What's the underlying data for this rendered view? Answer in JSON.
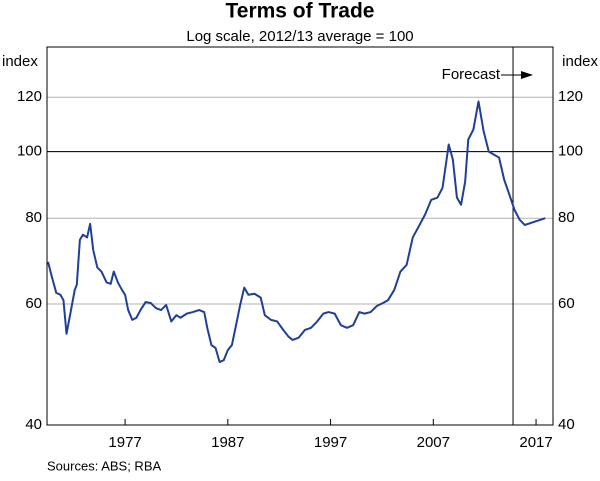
{
  "chart_data": {
    "type": "line",
    "title": "Terms of Trade",
    "subtitle": "Log scale, 2012/13 average = 100",
    "y_label": "index",
    "y2_label": "index",
    "source": "Sources:   ABS; RBA",
    "log_y": true,
    "grid": true,
    "hline": 100,
    "forecast_start": 2014.76,
    "annotation": "Forecast",
    "xlim": [
      1969.4,
      2018.65
    ],
    "xticks": [
      1977,
      1987,
      1997,
      2007,
      2017
    ],
    "ylim": [
      40,
      142
    ],
    "yticks": [
      40,
      60,
      80,
      100,
      120
    ],
    "y2lim": [
      40,
      142
    ],
    "y2ticks": [
      40,
      60,
      80,
      100,
      120
    ],
    "x": [
      1969.5,
      1969.9,
      1970.3,
      1970.7,
      1971.0,
      1971.3,
      1971.7,
      1972.1,
      1972.3,
      1972.6,
      1972.9,
      1973.3,
      1973.6,
      1973.9,
      1974.3,
      1974.7,
      1975.2,
      1975.6,
      1975.9,
      1976.3,
      1976.7,
      1977.0,
      1977.3,
      1977.7,
      1978.1,
      1978.5,
      1979.0,
      1979.5,
      1980.0,
      1980.5,
      1981.0,
      1981.5,
      1982.0,
      1982.4,
      1983.0,
      1983.6,
      1984.2,
      1984.7,
      1985.0,
      1985.4,
      1985.8,
      1986.2,
      1986.6,
      1987.0,
      1987.4,
      1987.8,
      1988.2,
      1988.6,
      1989.0,
      1989.6,
      1990.2,
      1990.6,
      1991.2,
      1991.8,
      1992.4,
      1992.9,
      1993.3,
      1993.9,
      1994.5,
      1995.1,
      1995.7,
      1996.3,
      1996.8,
      1997.4,
      1998.0,
      1998.6,
      1999.2,
      1999.8,
      2000.3,
      2000.9,
      2001.5,
      2002.1,
      2002.6,
      2003.2,
      2003.8,
      2004.4,
      2005.0,
      2005.6,
      2006.2,
      2006.8,
      2007.4,
      2007.9,
      2008.5,
      2008.9,
      2009.3,
      2009.7,
      2010.1,
      2010.4,
      2010.9,
      2011.4,
      2011.9,
      2012.4,
      2012.9,
      2013.4,
      2013.9,
      2014.4,
      2014.9,
      2015.4,
      2015.9,
      2016.9,
      2017.9
    ],
    "series": [
      {
        "name": "Terms of Trade",
        "color": "#1f3f99",
        "values": [
          69.1,
          65.5,
          62.3,
          61.9,
          60.8,
          54.3,
          58.4,
          62.9,
          64,
          74.4,
          75.7,
          75,
          78.5,
          71.9,
          67.8,
          66.9,
          64.5,
          64.2,
          66.9,
          64.5,
          62.9,
          61.9,
          58.8,
          56.9,
          57.3,
          58.8,
          60.4,
          60.2,
          59.2,
          58.8,
          59.8,
          56.6,
          57.8,
          57.3,
          58.1,
          58.4,
          58.8,
          58.4,
          55.4,
          52.3,
          51.8,
          49.4,
          49.7,
          51.4,
          52.3,
          55.9,
          59.8,
          63.4,
          61.9,
          62.1,
          61.3,
          57.8,
          56.9,
          56.6,
          55.0,
          53.8,
          53.2,
          53.6,
          55.0,
          55.4,
          56.6,
          58.1,
          58.4,
          58.1,
          55.9,
          55.4,
          55.9,
          58.4,
          58.1,
          58.4,
          59.6,
          60.2,
          60.8,
          62.9,
          66.9,
          68.4,
          75,
          77.9,
          81.0,
          85.1,
          85.7,
          88.6,
          102.4,
          97.4,
          85.7,
          83.7,
          90.4,
          104.1,
          107.7,
          118.3,
          107.0,
          100,
          99,
          98,
          91,
          86.6,
          82.3,
          79.6,
          78.2,
          79.1,
          80
        ]
      }
    ]
  }
}
